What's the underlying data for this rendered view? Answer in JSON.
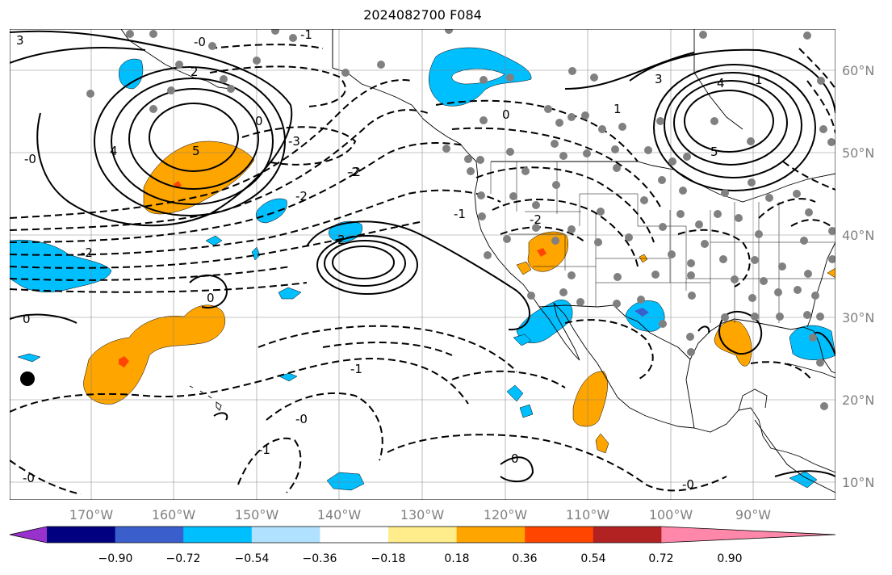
{
  "title": "2024082700 F084",
  "map": {
    "lon_labels": [
      "170°W",
      "160°W",
      "150°W",
      "140°W",
      "130°W",
      "120°W",
      "110°W",
      "100°W",
      "90°W"
    ],
    "lat_labels": [
      "60°N",
      "50°N",
      "40°N",
      "30°N",
      "20°N",
      "10°N"
    ],
    "contour_labels": [
      "-0",
      "-1",
      "-2",
      "-3",
      "2",
      "4",
      "5",
      "0",
      "-0",
      "3",
      "-2",
      "-2",
      "-1",
      "-2",
      "2",
      "0",
      "-1",
      "-0",
      "0",
      "-1",
      "-0",
      "0",
      "3",
      "1",
      "5",
      "-0",
      "0",
      "-2",
      "1",
      "4"
    ]
  },
  "colorbar": {
    "tick_labels": [
      "−0.90",
      "−0.72",
      "−0.54",
      "−0.36",
      "−0.18",
      "0.18",
      "0.36",
      "0.54",
      "0.72",
      "0.90"
    ],
    "colors": [
      "#9932cc",
      "#000080",
      "#3a5fcd",
      "#00bfff",
      "#b0e2ff",
      "#ffffff",
      "#ffec8b",
      "#ffa500",
      "#ff4500",
      "#b22222",
      "#ff88aa"
    ]
  }
}
